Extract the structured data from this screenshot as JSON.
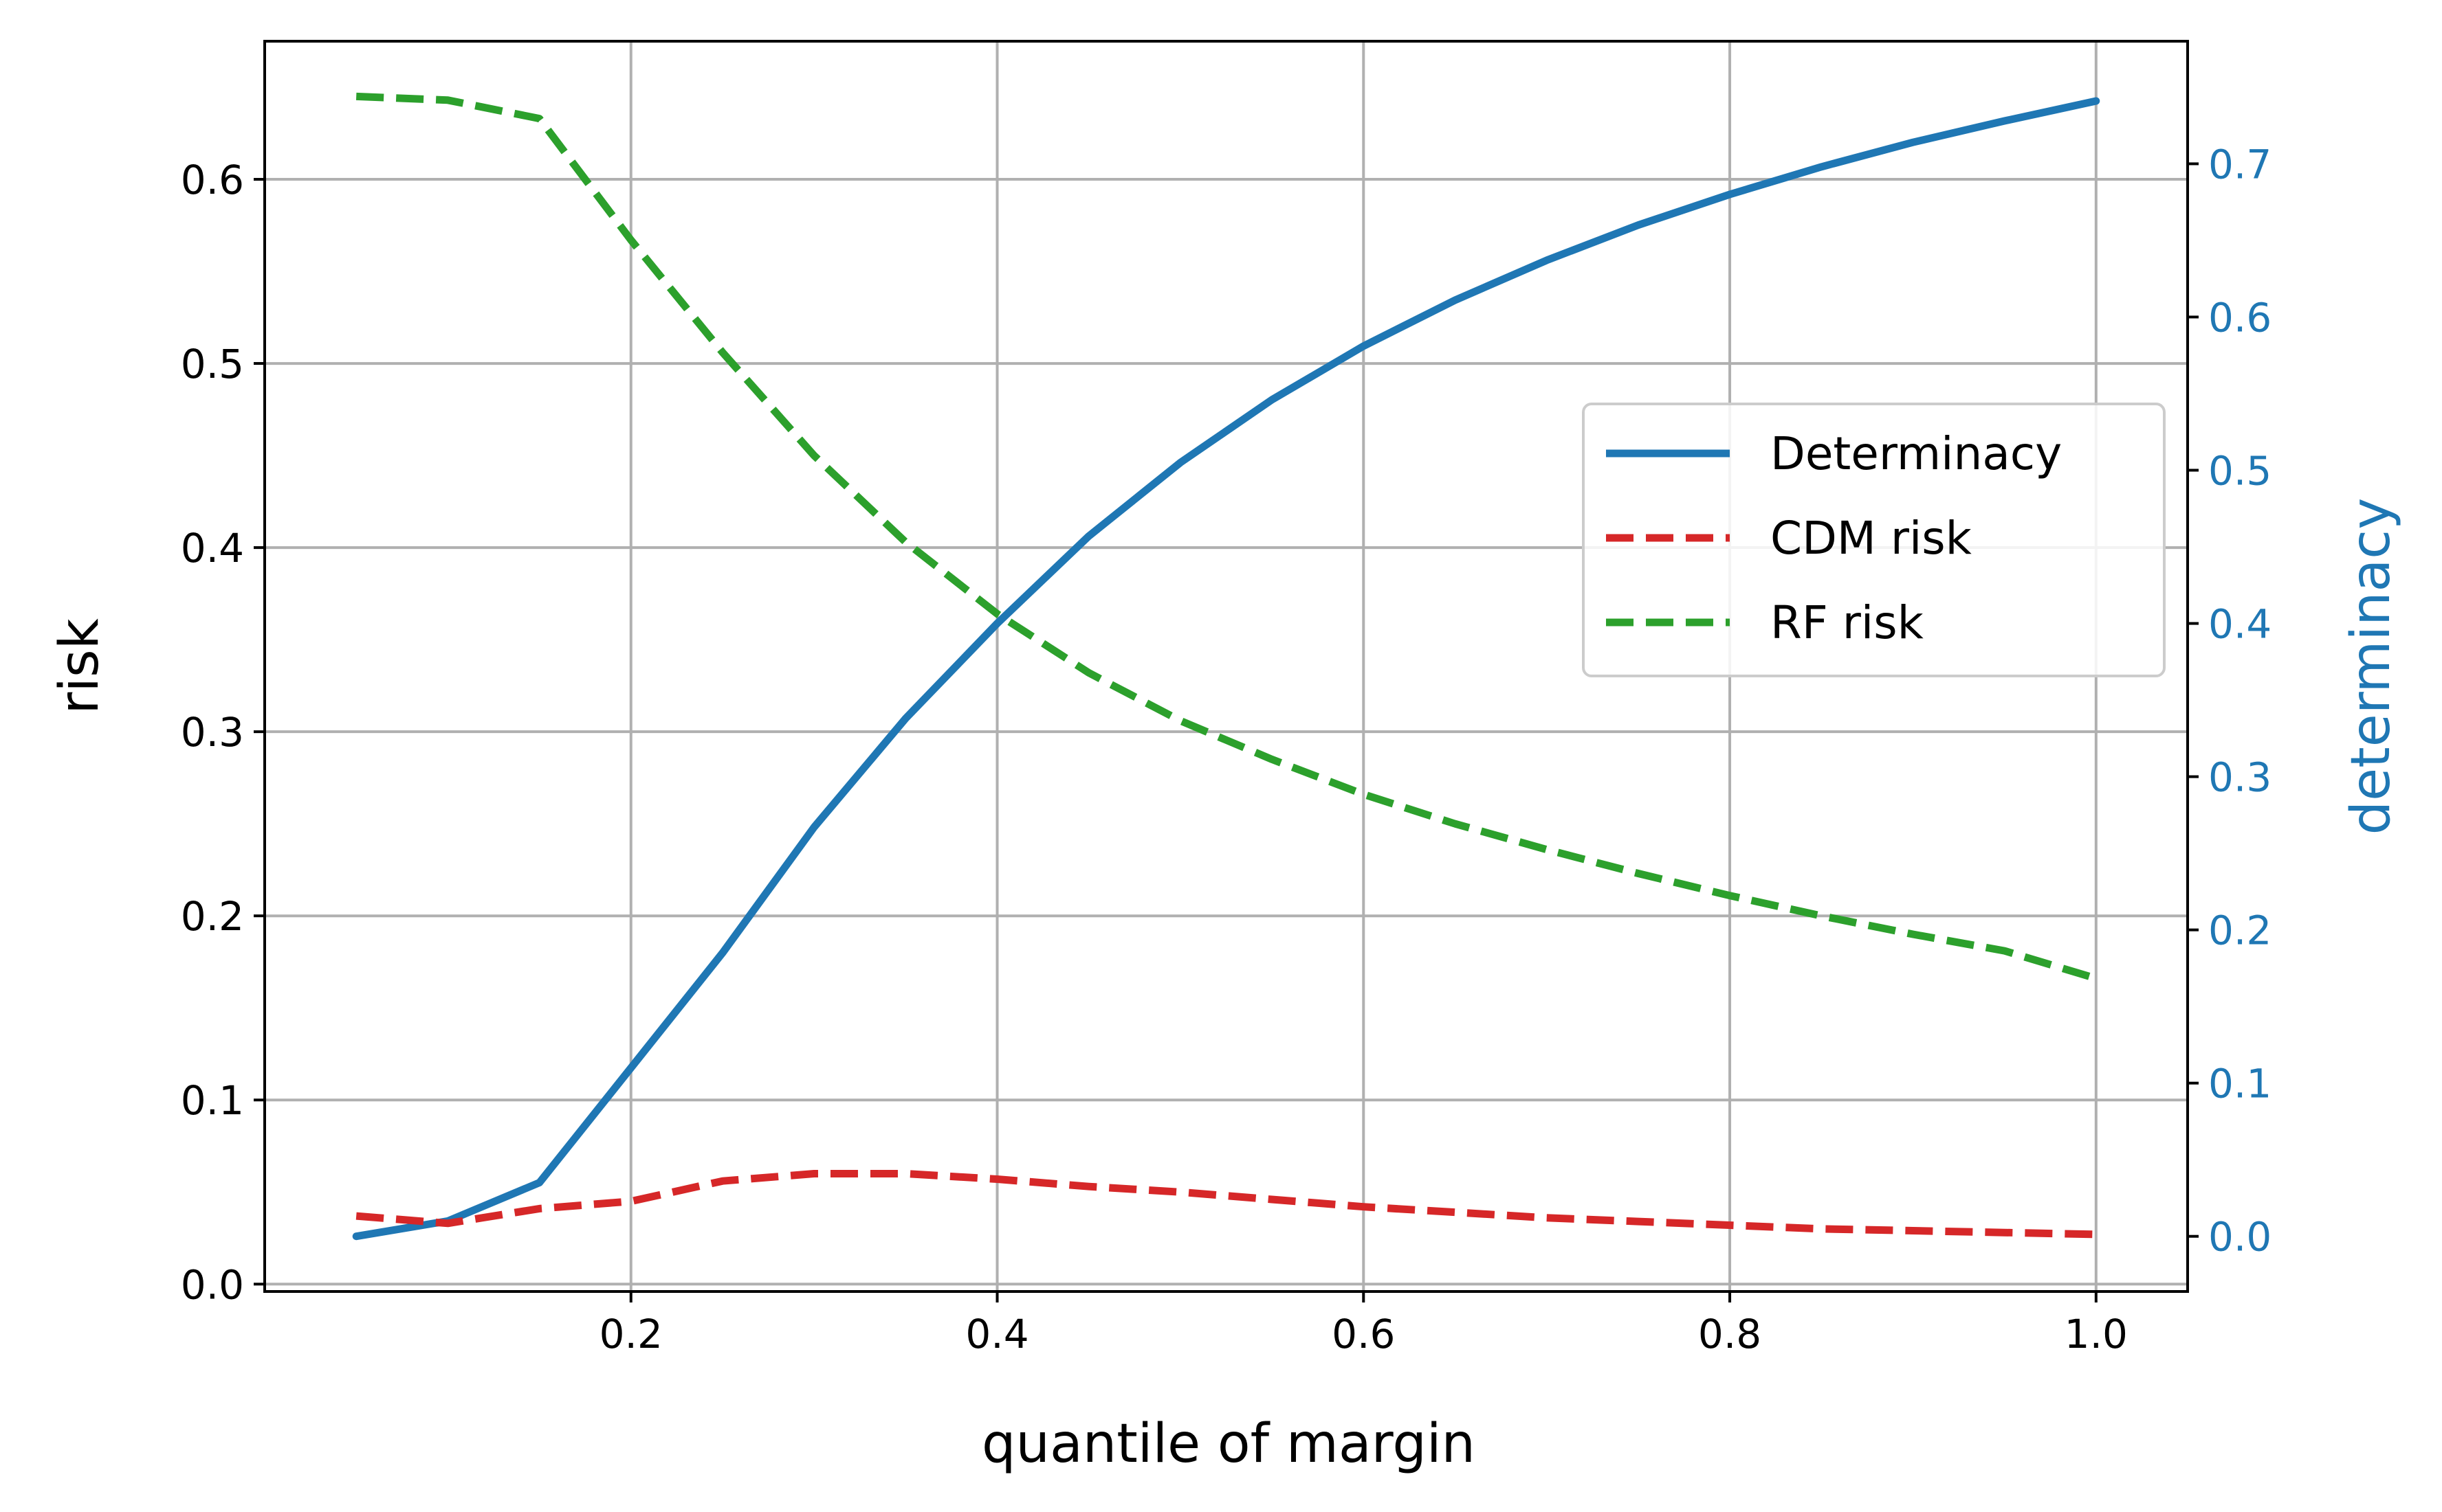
{
  "chart_data": {
    "type": "line",
    "xlabel": "quantile of margin",
    "ylabel": "risk",
    "ylabel_right": "determinacy",
    "xlim": [
      0.0,
      1.05
    ],
    "ylim": [
      -0.004,
      0.675
    ],
    "ylim_right": [
      -0.036,
      0.78
    ],
    "xticks": [
      0.2,
      0.4,
      0.6,
      0.8,
      1.0
    ],
    "xtick_labels": [
      "0.2",
      "0.4",
      "0.6",
      "0.8",
      "1.0"
    ],
    "yticks": [
      0.0,
      0.1,
      0.2,
      0.3,
      0.4,
      0.5,
      0.6
    ],
    "ytick_labels": [
      "0.0",
      "0.1",
      "0.2",
      "0.3",
      "0.4",
      "0.5",
      "0.6"
    ],
    "yticks_right": [
      0.0,
      0.1,
      0.2,
      0.3,
      0.4,
      0.5,
      0.6,
      0.7
    ],
    "ytick_labels_right": [
      "0.0",
      "0.1",
      "0.2",
      "0.3",
      "0.4",
      "0.5",
      "0.6",
      "0.7"
    ],
    "grid": true,
    "legend_position": "center-right",
    "x": [
      0.05,
      0.1,
      0.15,
      0.2,
      0.25,
      0.3,
      0.35,
      0.4,
      0.45,
      0.5,
      0.55,
      0.6,
      0.65,
      0.7,
      0.75,
      0.8,
      0.85,
      0.9,
      0.95,
      1.0
    ],
    "series": [
      {
        "name": "Determinacy",
        "axis": "right",
        "color": "#1f77b4",
        "style": "solid",
        "values": [
          0.0,
          0.01,
          0.035,
          0.11,
          0.185,
          0.267,
          0.338,
          0.4,
          0.457,
          0.505,
          0.546,
          0.581,
          0.611,
          0.637,
          0.66,
          0.68,
          0.698,
          0.714,
          0.728,
          0.741
        ]
      },
      {
        "name": "CDM risk",
        "axis": "left",
        "color": "#d62728",
        "style": "dashed",
        "values": [
          0.037,
          0.033,
          0.041,
          0.045,
          0.056,
          0.06,
          0.06,
          0.057,
          0.053,
          0.05,
          0.046,
          0.042,
          0.039,
          0.036,
          0.034,
          0.032,
          0.03,
          0.029,
          0.028,
          0.027
        ]
      },
      {
        "name": "RF risk",
        "axis": "left",
        "color": "#2ca02c",
        "style": "dashed",
        "values": [
          0.645,
          0.643,
          0.633,
          0.567,
          0.506,
          0.45,
          0.403,
          0.364,
          0.332,
          0.306,
          0.285,
          0.266,
          0.25,
          0.236,
          0.223,
          0.211,
          0.2,
          0.19,
          0.181,
          0.166
        ]
      }
    ]
  }
}
